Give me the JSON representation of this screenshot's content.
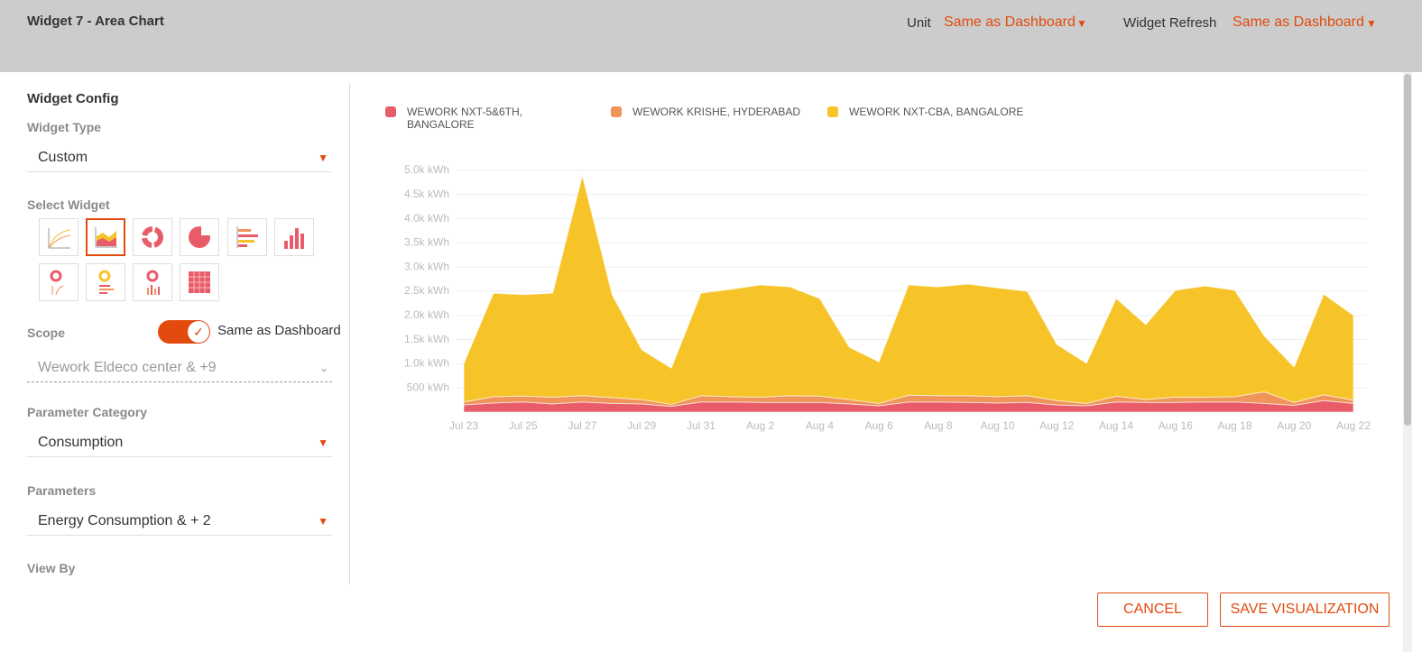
{
  "header": {
    "title": "Widget 7 - Area Chart",
    "unit_label": "Unit",
    "unit_value": "Same as Dashboard",
    "refresh_label": "Widget Refresh",
    "refresh_value": "Same as Dashboard"
  },
  "config": {
    "title": "Widget Config",
    "widget_type_label": "Widget Type",
    "widget_type_value": "Custom",
    "select_widget_label": "Select Widget",
    "scope_label": "Scope",
    "scope_toggle_label": "Same as Dashboard",
    "scope_value": "Wework Eldeco center & +9",
    "parameter_category_label": "Parameter Category",
    "parameter_category_value": "Consumption",
    "parameters_label": "Parameters",
    "parameters_value": "Energy Consumption & + 2",
    "view_by_label": "View By"
  },
  "buttons": {
    "cancel": "CANCEL",
    "save": "SAVE VISUALIZATION"
  },
  "chart_data": {
    "type": "stacked_area",
    "categories": [
      "Jul 23",
      null,
      "Jul 25",
      null,
      "Jul 27",
      null,
      "Jul 29",
      null,
      "Jul 31",
      null,
      "Aug 2",
      null,
      "Aug 4",
      null,
      "Aug 6",
      null,
      "Aug 8",
      null,
      "Aug 10",
      null,
      "Aug 12",
      null,
      "Aug 14",
      null,
      "Aug 16",
      null,
      "Aug 18",
      null,
      "Aug 20",
      null,
      "Aug 22"
    ],
    "series": [
      {
        "name": "WEWORK NXT-5&6TH, BANGALORE",
        "color": "#e85c6a",
        "values": [
          150,
          190,
          210,
          170,
          210,
          180,
          170,
          120,
          210,
          210,
          200,
          200,
          200,
          170,
          130,
          210,
          210,
          200,
          190,
          200,
          150,
          130,
          210,
          200,
          200,
          210,
          210,
          180,
          140,
          240,
          180
        ]
      },
      {
        "name": "WEWORK KRISHE, HYDERABAD",
        "color": "#f0955a",
        "values": [
          60,
          130,
          120,
          140,
          130,
          120,
          90,
          40,
          130,
          110,
          110,
          140,
          130,
          90,
          50,
          140,
          130,
          140,
          130,
          140,
          90,
          50,
          120,
          60,
          110,
          100,
          110,
          240,
          60,
          120,
          70
        ]
      },
      {
        "name": "WEWORK NXT-CBA, BANGALORE",
        "color": "#f6c328",
        "values": [
          790,
          2140,
          2100,
          2150,
          4550,
          2130,
          1030,
          750,
          2120,
          2220,
          2320,
          2250,
          2020,
          1080,
          860,
          2280,
          2250,
          2310,
          2250,
          2160,
          1160,
          830,
          2020,
          1550,
          2210,
          2300,
          2200,
          1150,
          730,
          2080,
          1750
        ]
      }
    ],
    "ylim": [
      0,
      5000
    ],
    "yticks": [
      {
        "value": 500,
        "label": "500 kWh"
      },
      {
        "value": 1000,
        "label": "1.0k kWh"
      },
      {
        "value": 1500,
        "label": "1.5k kWh"
      },
      {
        "value": 2000,
        "label": "2.0k kWh"
      },
      {
        "value": 2500,
        "label": "2.5k kWh"
      },
      {
        "value": 3000,
        "label": "3.0k kWh"
      },
      {
        "value": 3500,
        "label": "3.5k kWh"
      },
      {
        "value": 4000,
        "label": "4.0k kWh"
      },
      {
        "value": 4500,
        "label": "4.5k kWh"
      },
      {
        "value": 5000,
        "label": "5.0k kWh"
      }
    ],
    "grid": true
  }
}
